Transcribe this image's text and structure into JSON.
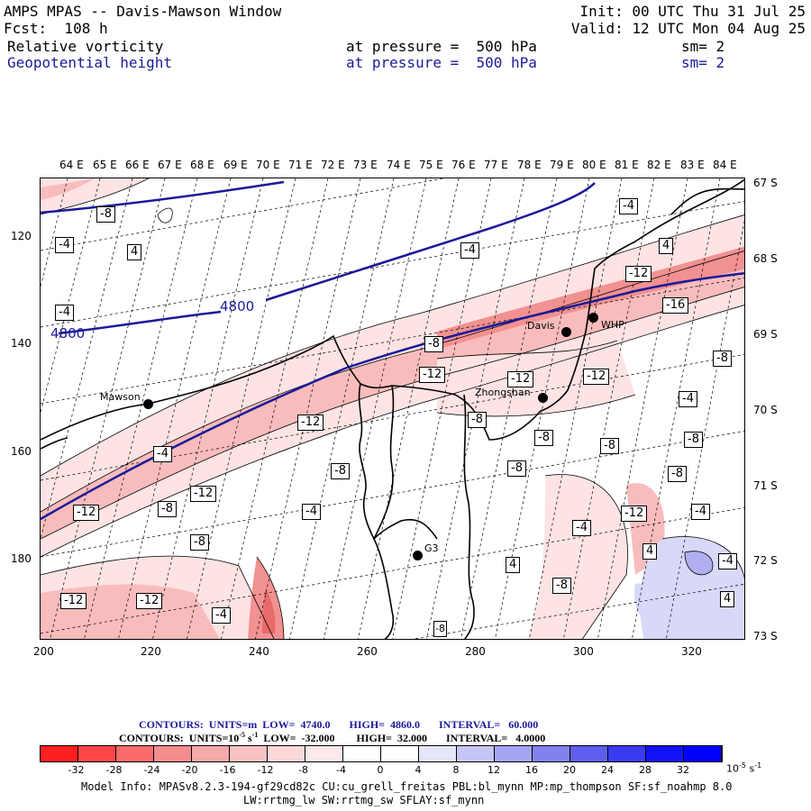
{
  "header": {
    "line1_left": "AMPS MPAS -- Davis-Mawson Window",
    "line1_right": "Init: 00 UTC Thu 31 Jul 25",
    "line2_left": "Fcst:  108 h",
    "line2_right": "Valid: 12 UTC Mon 04 Aug 25",
    "field1_name": "Relative vorticity",
    "field1_level": "at pressure =  500 hPa",
    "field1_sm": "sm= 2",
    "field2_name": "Geopotential height",
    "field2_level": "at pressure =  500 hPa",
    "field2_sm": "sm= 2"
  },
  "map": {
    "top_longitudes": [
      "64 E",
      "65 E",
      "66 E",
      "67 E",
      "68 E",
      "69 E",
      "70 E",
      "71 E",
      "72 E",
      "73 E",
      "74 E",
      "75 E",
      "76 E",
      "77 E",
      "78 E",
      "79 E",
      "80 E",
      "81 E",
      "82 E",
      "83 E",
      "84 E"
    ],
    "right_latitudes": [
      "67 S",
      "68 S",
      "69 S",
      "70 S",
      "71 S",
      "72 S",
      "73 S"
    ],
    "y_ticks": [
      "120",
      "140",
      "160",
      "180"
    ],
    "x_ticks": [
      "200",
      "220",
      "240",
      "260",
      "280",
      "300",
      "320"
    ],
    "height_contour_labels": [
      "4800",
      "4800"
    ],
    "vorticity_labels": [
      "-8",
      "-4",
      "4",
      "-4",
      "-4",
      "-4",
      "4",
      "-12",
      "-16",
      "-8",
      "-12",
      "-8",
      "-12",
      "-4",
      "-12",
      "-8",
      "-12",
      "-4",
      "-8",
      "-8",
      "-8",
      "-8",
      "-8",
      "-12",
      "-8",
      "-12",
      "-8",
      "-4",
      "-12",
      "-4",
      "-4",
      "-8",
      "4",
      "4",
      "-8",
      "-4",
      "4",
      "-12",
      "-12",
      "-4",
      "-8"
    ],
    "stations": {
      "mawson": "Mawson",
      "davis": "Davis",
      "whp": "WHP",
      "zhongshan": "Zhongshan",
      "g3": "G3"
    },
    "colors": {
      "height_contour": "#1a1a9a",
      "neg_light": "#fde3e3",
      "neg_mid": "#f9bcbc",
      "neg_strong": "#f29191",
      "pos_light": "#d8d8f8",
      "pos_mid": "#b0b0f0"
    }
  },
  "contour_info": {
    "line1": "CONTOURS:  UNITS=m  LOW=  4740.0       HIGH=  4860.0       INTERVAL=   60.000",
    "line2_a": "CONTOURS:  UNITS=10",
    "line2_exp": "-5",
    "line2_b": " s",
    "line2_exp2": "-1",
    "line2_c": "  LOW=  -32.000        HIGH=  32.000       INTERVAL=   4.0000"
  },
  "colorbar": {
    "colors": [
      "#ff1f1f",
      "#ff4747",
      "#fb6b6b",
      "#f58d8d",
      "#f6a9a9",
      "#f9c2c2",
      "#fbd7d7",
      "#fde9e9",
      "#ffffff",
      "#ffffff",
      "#e6e6fb",
      "#c6c6f6",
      "#a4a4f2",
      "#8282ee",
      "#5e5ef0",
      "#3a3af4",
      "#1212fb",
      "#0000ff"
    ],
    "labels": [
      "-32",
      "-28",
      "-24",
      "-20",
      "-16",
      "-12",
      "-8",
      "-4",
      "0",
      "4",
      "8",
      "12",
      "16",
      "20",
      "24",
      "28",
      "32"
    ],
    "units": "10",
    "units_exp": "-5",
    "units_tail": " s",
    "units_exp2": "-1"
  },
  "footer": {
    "line1": "Model Info: MPASv8.2.3-194-gf29cd82c CU:cu_grell_freitas PBL:bl_mynn MP:mp_thompson SF:sf_noahmp 8.0",
    "line2": "LW:rrtmg_lw SW:rrtmg_sw SFLAY:sf_mynn"
  }
}
